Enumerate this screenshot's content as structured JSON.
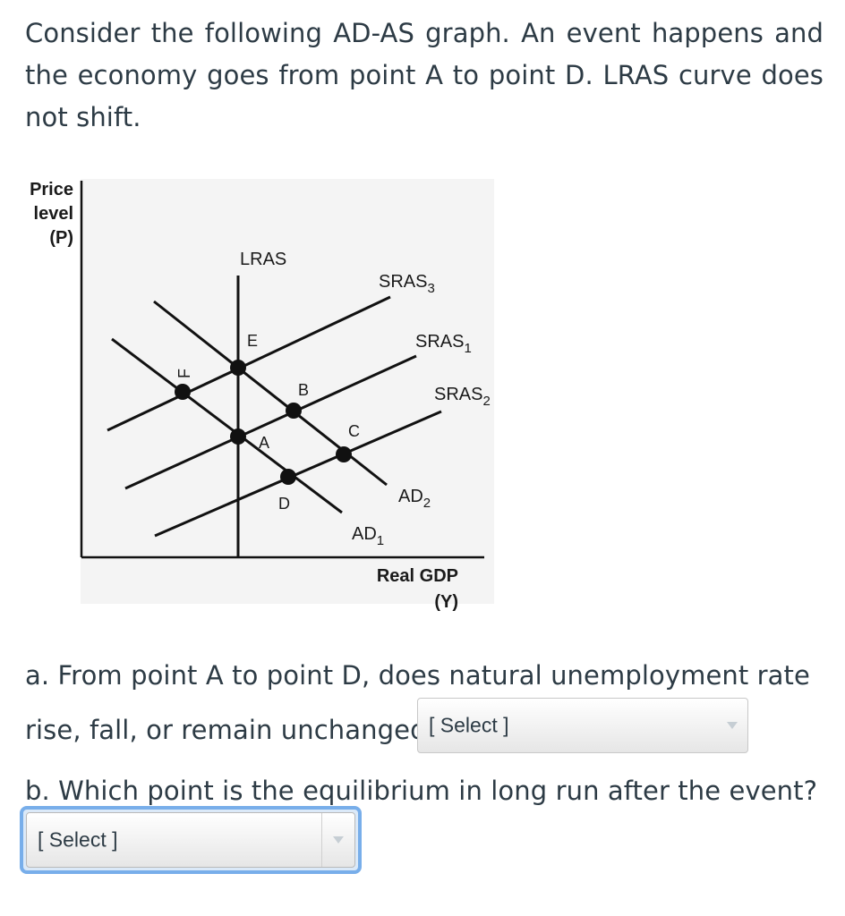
{
  "intro_text": "Consider the following AD-AS graph. An event happens and the economy goes from point A to point D. LRAS curve does not shift.",
  "graph": {
    "y_axis_label": [
      "Price",
      "level",
      "(P)"
    ],
    "x_axis_label": [
      "Real GDP",
      "(Y)"
    ],
    "curves": {
      "lras": "LRAS",
      "sras3": {
        "base": "SRAS",
        "sub": "3"
      },
      "sras1": {
        "base": "SRAS",
        "sub": "1"
      },
      "sras2": {
        "base": "SRAS",
        "sub": "2"
      },
      "ad1": {
        "base": "AD",
        "sub": "1"
      },
      "ad2": {
        "base": "AD",
        "sub": "2"
      }
    },
    "points": [
      "A",
      "B",
      "C",
      "D",
      "E",
      "F"
    ]
  },
  "question_a": {
    "line1": "a.  From point A to point D, does natural unemployment rate",
    "line2": "rise, fall, or remain unchanged?",
    "select_value": "[ Select ]"
  },
  "question_b": {
    "text": "b.  Which point is the equilibrium in long run after the event?",
    "select_value": "[ Select ]"
  }
}
